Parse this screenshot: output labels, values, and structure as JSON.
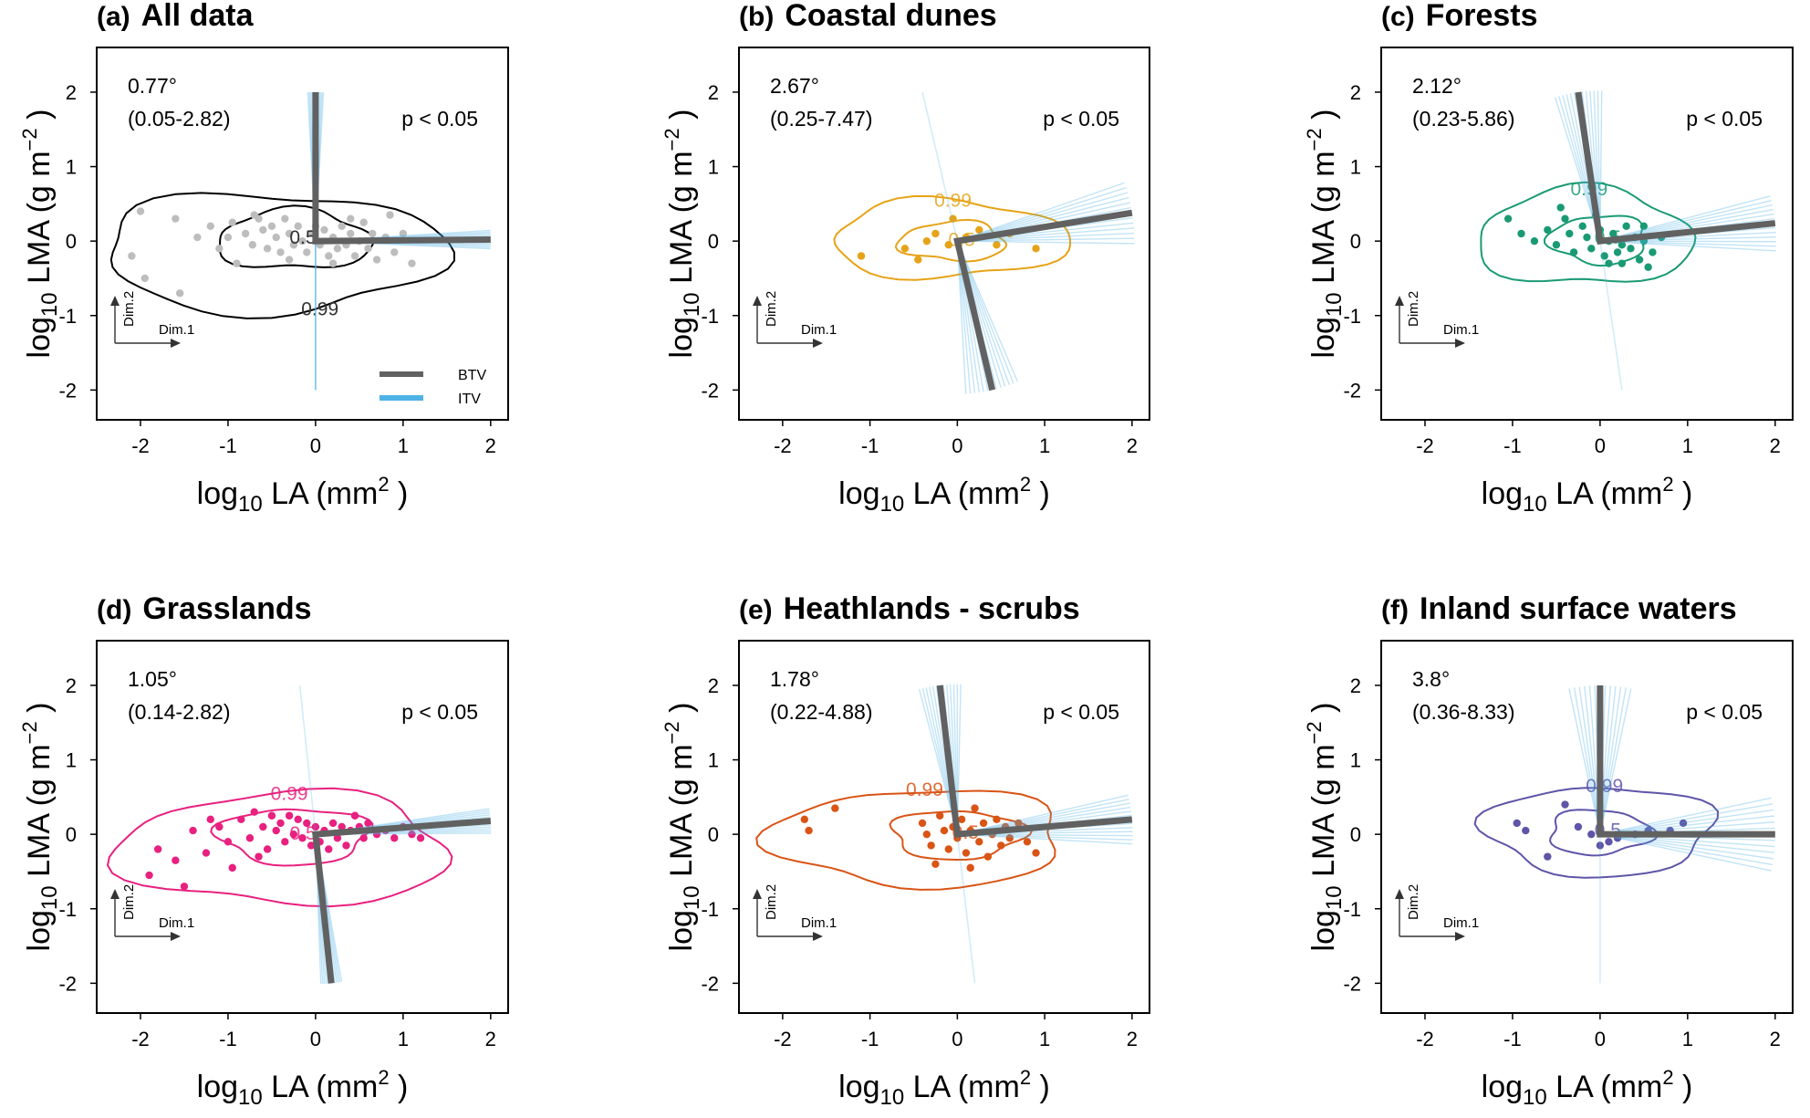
{
  "chart_data": [
    {
      "type": "scatter",
      "panel": "(a)",
      "title": "All data",
      "xlabel": "log10 LA (mm2 )",
      "ylabel": "log10 LMA (g m−2 )",
      "xlim": [
        -2.5,
        2.2
      ],
      "ylim": [
        -2.4,
        2.6
      ],
      "xticks": [
        -2,
        -1,
        0,
        1,
        2
      ],
      "yticks": [
        -2,
        -1,
        0,
        1,
        2
      ],
      "color": "#bdbdbd",
      "angle": "0.77°",
      "ci": "(0.05-2.82)",
      "p": "p < 0.05",
      "btv_axes": [
        [
          0,
          2
        ],
        [
          0,
          0
        ],
        [
          2,
          0.02
        ]
      ],
      "itv_spread_deg": 3,
      "contour_labels": [
        "0.5",
        "0.99"
      ],
      "legend": [
        "BTV",
        "ITV"
      ],
      "dim_labels": [
        "Dim.2",
        "Dim.1"
      ],
      "points": [
        [
          -2.0,
          0.4
        ],
        [
          -2.1,
          -0.2
        ],
        [
          -1.95,
          -0.5
        ],
        [
          -1.6,
          0.3
        ],
        [
          -1.55,
          -0.7
        ],
        [
          -1.35,
          0.05
        ],
        [
          -1.2,
          0.2
        ],
        [
          -1.1,
          -0.1
        ],
        [
          -0.95,
          0.25
        ],
        [
          -0.9,
          -0.3
        ],
        [
          -0.8,
          0.1
        ],
        [
          -0.72,
          -0.05
        ],
        [
          -0.65,
          0.3
        ],
        [
          -0.6,
          0.15
        ],
        [
          -0.55,
          -0.1
        ],
        [
          -0.5,
          0.2
        ],
        [
          -0.45,
          0.05
        ],
        [
          -0.4,
          -0.15
        ],
        [
          -0.35,
          0.3
        ],
        [
          -0.3,
          0.1
        ],
        [
          -0.25,
          -0.05
        ],
        [
          -0.2,
          0.2
        ],
        [
          -0.15,
          0.0
        ],
        [
          -0.1,
          -0.15
        ],
        [
          -0.05,
          0.1
        ],
        [
          0.0,
          0.2
        ],
        [
          0.05,
          -0.05
        ],
        [
          0.1,
          0.15
        ],
        [
          0.15,
          -0.2
        ],
        [
          0.2,
          0.05
        ],
        [
          0.25,
          -0.1
        ],
        [
          0.3,
          0.2
        ],
        [
          0.35,
          -0.05
        ],
        [
          0.4,
          0.1
        ],
        [
          0.45,
          -0.2
        ],
        [
          0.5,
          0.0
        ],
        [
          0.55,
          0.25
        ],
        [
          0.6,
          -0.1
        ],
        [
          0.65,
          0.1
        ],
        [
          0.7,
          -0.25
        ],
        [
          0.8,
          0.05
        ],
        [
          0.9,
          -0.15
        ],
        [
          1.0,
          0.1
        ],
        [
          1.1,
          -0.3
        ],
        [
          0.85,
          0.35
        ],
        [
          -0.7,
          0.35
        ],
        [
          -0.3,
          -0.25
        ],
        [
          0.2,
          -0.3
        ],
        [
          -1.0,
          0.05
        ],
        [
          0.4,
          0.3
        ]
      ]
    },
    {
      "type": "scatter",
      "panel": "(b)",
      "title": "Coastal dunes",
      "xlabel": "log10 LA (mm2 )",
      "ylabel": "log10 LMA (g m−2 )",
      "xlim": [
        -2.5,
        2.2
      ],
      "ylim": [
        -2.4,
        2.6
      ],
      "xticks": [
        -2,
        -1,
        0,
        1,
        2
      ],
      "yticks": [
        -2,
        -1,
        0,
        1,
        2
      ],
      "color": "#e6a317",
      "angle": "2.67°",
      "ci": "(0.25-7.47)",
      "p": "p < 0.05",
      "btv_axes": [
        [
          0.4,
          -2
        ],
        [
          0,
          0
        ],
        [
          2,
          0.38
        ]
      ],
      "itv_spread_deg": 10,
      "contour_labels": [
        "0.5",
        "0.99"
      ],
      "dim_labels": [
        "Dim.2",
        "Dim.1"
      ],
      "points": [
        [
          -1.1,
          -0.2
        ],
        [
          -0.6,
          -0.1
        ],
        [
          -0.45,
          -0.25
        ],
        [
          -0.35,
          0.0
        ],
        [
          -0.25,
          0.1
        ],
        [
          -0.1,
          -0.05
        ],
        [
          0.1,
          0.05
        ],
        [
          0.25,
          0.15
        ],
        [
          -0.05,
          0.3
        ],
        [
          0.45,
          -0.05
        ],
        [
          0.9,
          -0.1
        ],
        [
          0.6,
          0.1
        ]
      ]
    },
    {
      "type": "scatter",
      "panel": "(c)",
      "title": "Forests",
      "xlabel": "log10 LA (mm2 )",
      "ylabel": "log10 LMA (g m−2 )",
      "xlim": [
        -2.5,
        2.2
      ],
      "ylim": [
        -2.4,
        2.6
      ],
      "xticks": [
        -2,
        -1,
        0,
        1,
        2
      ],
      "yticks": [
        -2,
        -1,
        0,
        1,
        2
      ],
      "color": "#1a9a74",
      "angle": "2.12°",
      "ci": "(0.23-5.86)",
      "p": "p < 0.05",
      "btv_axes": [
        [
          -0.25,
          2
        ],
        [
          0,
          0
        ],
        [
          2,
          0.24
        ]
      ],
      "itv_spread_deg": 9,
      "contour_labels": [
        "0.5",
        "0.99"
      ],
      "dim_labels": [
        "Dim.2",
        "Dim.1"
      ],
      "points": [
        [
          -1.05,
          0.3
        ],
        [
          -0.9,
          0.1
        ],
        [
          -0.75,
          0.0
        ],
        [
          -0.6,
          0.15
        ],
        [
          -0.5,
          -0.05
        ],
        [
          -0.4,
          0.3
        ],
        [
          -0.35,
          0.1
        ],
        [
          -0.3,
          -0.15
        ],
        [
          -0.2,
          0.2
        ],
        [
          -0.15,
          0.05
        ],
        [
          -0.1,
          -0.1
        ],
        [
          0.0,
          0.15
        ],
        [
          0.05,
          -0.2
        ],
        [
          0.1,
          0.0
        ],
        [
          0.15,
          0.1
        ],
        [
          0.2,
          -0.15
        ],
        [
          0.25,
          -0.05
        ],
        [
          0.3,
          0.2
        ],
        [
          0.35,
          -0.1
        ],
        [
          0.4,
          0.05
        ],
        [
          0.45,
          -0.25
        ],
        [
          0.5,
          0.0
        ],
        [
          0.55,
          -0.35
        ],
        [
          0.6,
          -0.15
        ],
        [
          0.7,
          0.05
        ],
        [
          0.1,
          -0.3
        ],
        [
          -0.45,
          0.45
        ],
        [
          -0.05,
          0.35
        ],
        [
          0.25,
          -0.3
        ],
        [
          0.5,
          0.2
        ]
      ]
    },
    {
      "type": "scatter",
      "panel": "(d)",
      "title": "Grasslands",
      "xlabel": "log10 LA (mm2 )",
      "ylabel": "log10 LMA (g m−2 )",
      "xlim": [
        -2.5,
        2.2
      ],
      "ylim": [
        -2.4,
        2.6
      ],
      "xticks": [
        -2,
        -1,
        0,
        1,
        2
      ],
      "yticks": [
        -2,
        -1,
        0,
        1,
        2
      ],
      "color": "#e8207f",
      "angle": "1.05°",
      "ci": "(0.14-2.82)",
      "p": "p < 0.05",
      "btv_axes": [
        [
          0.18,
          -2
        ],
        [
          0,
          0
        ],
        [
          2,
          0.18
        ]
      ],
      "itv_spread_deg": 4,
      "contour_labels": [
        "0.5",
        "0.99"
      ],
      "dim_labels": [
        "Dim.2",
        "Dim.1"
      ],
      "points": [
        [
          -1.9,
          -0.55
        ],
        [
          -1.8,
          -0.2
        ],
        [
          -1.6,
          -0.35
        ],
        [
          -1.5,
          -0.7
        ],
        [
          -1.4,
          0.05
        ],
        [
          -1.25,
          -0.25
        ],
        [
          -1.1,
          0.1
        ],
        [
          -1.0,
          -0.1
        ],
        [
          -0.95,
          -0.45
        ],
        [
          -0.85,
          0.2
        ],
        [
          -0.75,
          -0.05
        ],
        [
          -0.7,
          0.3
        ],
        [
          -0.6,
          0.1
        ],
        [
          -0.55,
          -0.2
        ],
        [
          -0.5,
          0.25
        ],
        [
          -0.45,
          0.05
        ],
        [
          -0.4,
          0.15
        ],
        [
          -0.35,
          -0.1
        ],
        [
          -0.3,
          0.25
        ],
        [
          -0.25,
          0.0
        ],
        [
          -0.2,
          0.2
        ],
        [
          -0.15,
          -0.05
        ],
        [
          -0.1,
          0.15
        ],
        [
          -0.05,
          -0.15
        ],
        [
          0.0,
          0.1
        ],
        [
          0.05,
          -0.1
        ],
        [
          0.1,
          0.05
        ],
        [
          0.15,
          -0.2
        ],
        [
          0.2,
          0.15
        ],
        [
          0.25,
          -0.05
        ],
        [
          0.3,
          0.1
        ],
        [
          0.35,
          -0.15
        ],
        [
          0.4,
          0.05
        ],
        [
          0.5,
          0.1
        ],
        [
          0.55,
          -0.05
        ],
        [
          0.6,
          0.15
        ],
        [
          0.7,
          0.0
        ],
        [
          0.8,
          0.05
        ],
        [
          0.9,
          -0.05
        ],
        [
          1.0,
          0.1
        ],
        [
          1.1,
          0.0
        ],
        [
          1.2,
          -0.05
        ],
        [
          -1.2,
          0.2
        ],
        [
          -0.65,
          -0.3
        ],
        [
          0.45,
          0.25
        ]
      ]
    },
    {
      "type": "scatter",
      "panel": "(e)",
      "title": "Heathlands - scrubs",
      "xlabel": "log10 LA (mm2 )",
      "ylabel": "log10 LMA (g m−2 )",
      "xlim": [
        -2.5,
        2.2
      ],
      "ylim": [
        -2.4,
        2.6
      ],
      "xticks": [
        -2,
        -1,
        0,
        1,
        2
      ],
      "yticks": [
        -2,
        -1,
        0,
        1,
        2
      ],
      "color": "#d95415",
      "angle": "1.78°",
      "ci": "(0.22-4.88)",
      "p": "p < 0.05",
      "btv_axes": [
        [
          -0.2,
          2
        ],
        [
          0,
          0
        ],
        [
          2,
          0.2
        ]
      ],
      "itv_spread_deg": 8,
      "contour_labels": [
        "0.99",
        "0.5"
      ],
      "dim_labels": [
        "Dim.2",
        "Dim.1"
      ],
      "points": [
        [
          -1.75,
          0.2
        ],
        [
          -1.7,
          0.05
        ],
        [
          -1.4,
          0.35
        ],
        [
          -0.4,
          0.15
        ],
        [
          -0.35,
          0.0
        ],
        [
          -0.3,
          -0.15
        ],
        [
          -0.2,
          0.25
        ],
        [
          -0.15,
          0.05
        ],
        [
          -0.1,
          -0.2
        ],
        [
          -0.05,
          0.1
        ],
        [
          0.0,
          -0.05
        ],
        [
          0.05,
          0.2
        ],
        [
          0.1,
          -0.25
        ],
        [
          0.15,
          0.05
        ],
        [
          0.2,
          0.35
        ],
        [
          0.25,
          -0.1
        ],
        [
          0.3,
          0.15
        ],
        [
          0.35,
          -0.3
        ],
        [
          0.4,
          0.0
        ],
        [
          0.45,
          0.2
        ],
        [
          0.5,
          -0.15
        ],
        [
          0.55,
          0.1
        ],
        [
          0.6,
          -0.05
        ],
        [
          0.7,
          0.15
        ],
        [
          0.8,
          -0.1
        ],
        [
          0.9,
          -0.25
        ],
        [
          -0.25,
          -0.4
        ],
        [
          0.15,
          -0.45
        ]
      ]
    },
    {
      "type": "scatter",
      "panel": "(f)",
      "title": "Inland surface waters",
      "xlabel": "log10 LA (mm2 )",
      "ylabel": "log10 LMA (g m−2 )",
      "xlim": [
        -2.5,
        2.2
      ],
      "ylim": [
        -2.4,
        2.6
      ],
      "xticks": [
        -2,
        -1,
        0,
        1,
        2
      ],
      "yticks": [
        -2,
        -1,
        0,
        1,
        2
      ],
      "color": "#5e55a8",
      "angle": "3.8°",
      "ci": "(0.36-8.33)",
      "p": "p < 0.05",
      "btv_axes": [
        [
          0,
          2
        ],
        [
          0,
          0
        ],
        [
          2,
          0
        ]
      ],
      "itv_spread_deg": 12,
      "contour_labels": [
        "0.99",
        "0.5"
      ],
      "dim_labels": [
        "Dim.2",
        "Dim.1"
      ],
      "points": [
        [
          -0.95,
          0.15
        ],
        [
          -0.85,
          0.05
        ],
        [
          -0.6,
          -0.3
        ],
        [
          -0.4,
          0.4
        ],
        [
          -0.25,
          0.1
        ],
        [
          -0.1,
          0.0
        ],
        [
          0.0,
          -0.15
        ],
        [
          0.1,
          -0.1
        ],
        [
          0.2,
          -0.05
        ],
        [
          0.4,
          0.0
        ],
        [
          0.55,
          0.05
        ],
        [
          0.8,
          0.05
        ],
        [
          0.95,
          0.15
        ]
      ]
    }
  ]
}
